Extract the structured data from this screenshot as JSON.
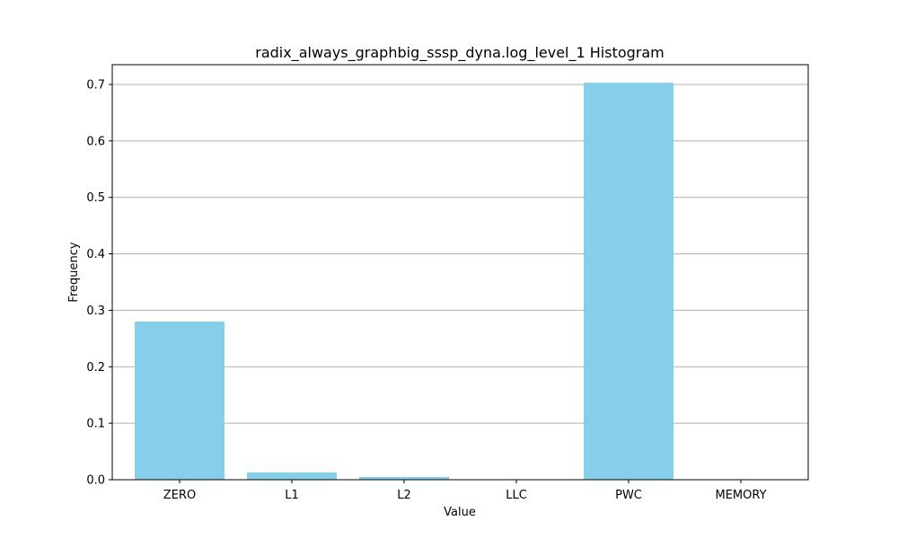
{
  "chart_data": {
    "type": "bar",
    "title": "radix_always_graphbig_sssp_dyna.log_level_1 Histogram",
    "xlabel": "Value",
    "ylabel": "Frequency",
    "categories": [
      "ZERO",
      "L1",
      "L2",
      "LLC",
      "PWC",
      "MEMORY"
    ],
    "values": [
      0.28,
      0.013,
      0.005,
      0.0,
      0.703,
      0.0
    ],
    "ylim": [
      0,
      0.735
    ],
    "yticks": [
      0.0,
      0.1,
      0.2,
      0.3,
      0.4,
      0.5,
      0.6,
      0.7
    ],
    "ytick_labels": [
      "0.0",
      "0.1",
      "0.2",
      "0.3",
      "0.4",
      "0.5",
      "0.6",
      "0.7"
    ],
    "grid": "y",
    "bar_color": "#87ceeb",
    "grid_color": "#b0b0b0"
  }
}
